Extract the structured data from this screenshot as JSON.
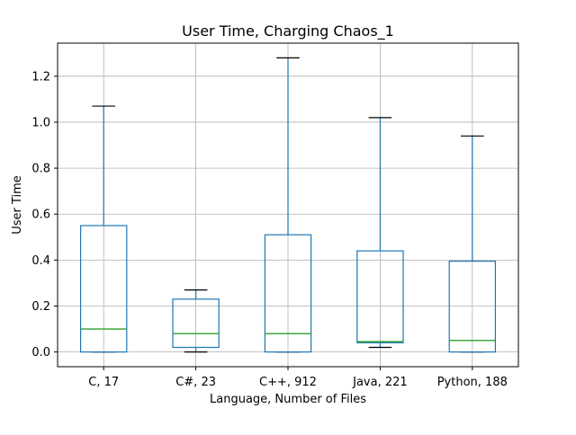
{
  "chart_data": {
    "type": "box",
    "title": "User Time, Charging Chaos_1",
    "xlabel": "Language, Number of Files",
    "ylabel": "User Time",
    "ylim": [
      -0.064,
      1.344
    ],
    "yticks": [
      0.0,
      0.2,
      0.4,
      0.6,
      0.8,
      1.0,
      1.2
    ],
    "ytick_labels": [
      "0.0",
      "0.2",
      "0.4",
      "0.6",
      "0.8",
      "1.0",
      "1.2"
    ],
    "grid": true,
    "colors": {
      "box": "#1f77b4",
      "median": "#2ca02c",
      "caps": "#000000",
      "grid": "#b0b0b0"
    },
    "categories": [
      "C, 17",
      "C#, 23",
      "C++, 912",
      "Java, 221",
      "Python, 188"
    ],
    "boxes": [
      {
        "whisker_low": 0.0,
        "q1": 0.0,
        "median": 0.1,
        "q3": 0.55,
        "whisker_high": 1.07
      },
      {
        "whisker_low": 0.0,
        "q1": 0.02,
        "median": 0.08,
        "q3": 0.23,
        "whisker_high": 0.27
      },
      {
        "whisker_low": 0.0,
        "q1": 0.0,
        "median": 0.08,
        "q3": 0.51,
        "whisker_high": 1.28
      },
      {
        "whisker_low": 0.02,
        "q1": 0.04,
        "median": 0.045,
        "q3": 0.44,
        "whisker_high": 1.02
      },
      {
        "whisker_low": 0.0,
        "q1": 0.0,
        "median": 0.05,
        "q3": 0.395,
        "whisker_high": 0.94
      }
    ]
  }
}
